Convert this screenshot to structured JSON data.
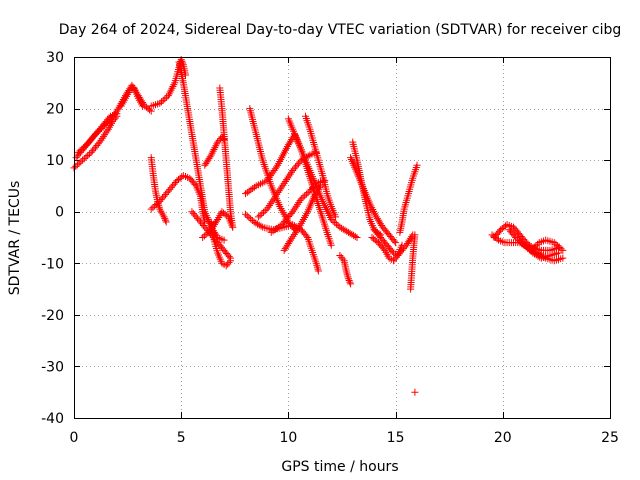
{
  "chart_data": {
    "type": "scatter",
    "title": "Day 264 of 2024, Sidereal Day-to-day VTEC variation (SDTVAR) for receiver cibg",
    "xlabel": "GPS time / hours",
    "ylabel": "SDTVAR / TECUs",
    "xlim": [
      0,
      25
    ],
    "ylim": [
      -40,
      30
    ],
    "xticks": [
      0,
      5,
      10,
      15,
      20,
      25
    ],
    "yticks": [
      -40,
      -30,
      -20,
      -10,
      0,
      10,
      20,
      30
    ],
    "xtick_labels": [
      "0",
      "5",
      "10",
      "15",
      "20",
      "25"
    ],
    "ytick_labels": [
      "-40",
      "-30",
      "-20",
      "-10",
      "0",
      "10",
      "20",
      "30"
    ],
    "grid": true,
    "marker": "+",
    "color": "#ff0000",
    "series": [
      {
        "name": "arc-1",
        "points": [
          [
            0.0,
            8.5
          ],
          [
            0.4,
            10.0
          ],
          [
            0.8,
            11.5
          ],
          [
            1.2,
            13.5
          ],
          [
            1.6,
            16.0
          ],
          [
            1.8,
            17.5
          ],
          [
            2.0,
            18.5
          ]
        ]
      },
      {
        "name": "arc-2",
        "points": [
          [
            0.1,
            10.5
          ],
          [
            0.5,
            12.5
          ],
          [
            0.9,
            14.5
          ],
          [
            1.3,
            16.5
          ],
          [
            1.7,
            18.5
          ],
          [
            2.0,
            19.0
          ]
        ]
      },
      {
        "name": "arc-3",
        "points": [
          [
            0.2,
            11.5
          ],
          [
            0.6,
            13.0
          ],
          [
            1.0,
            15.0
          ],
          [
            1.5,
            17.0
          ],
          [
            2.0,
            19.5
          ],
          [
            2.4,
            22.5
          ],
          [
            2.7,
            24.5
          ],
          [
            3.0,
            22.5
          ],
          [
            3.3,
            20.5
          ],
          [
            3.6,
            19.5
          ]
        ]
      },
      {
        "name": "arc-4",
        "points": [
          [
            2.2,
            20.5
          ],
          [
            2.4,
            22.0
          ],
          [
            2.6,
            23.5
          ],
          [
            2.8,
            24.0
          ],
          [
            3.0,
            22.0
          ],
          [
            3.2,
            20.5
          ]
        ]
      },
      {
        "name": "arc-5",
        "points": [
          [
            3.6,
            20.5
          ],
          [
            4.0,
            21.0
          ],
          [
            4.4,
            22.5
          ],
          [
            4.7,
            25.0
          ],
          [
            4.9,
            28.0
          ],
          [
            5.0,
            29.5
          ],
          [
            5.1,
            28.5
          ],
          [
            5.2,
            26.5
          ]
        ]
      },
      {
        "name": "arc-6",
        "points": [
          [
            4.9,
            29.0
          ],
          [
            5.1,
            25.0
          ],
          [
            5.3,
            20.0
          ],
          [
            5.5,
            15.0
          ],
          [
            5.7,
            10.0
          ],
          [
            5.9,
            5.0
          ],
          [
            6.1,
            0.0
          ],
          [
            6.4,
            -3.0
          ],
          [
            6.7,
            -5.0
          ],
          [
            7.0,
            -5.5
          ]
        ]
      },
      {
        "name": "arc-7",
        "points": [
          [
            3.6,
            10.5
          ],
          [
            3.7,
            7.0
          ],
          [
            3.8,
            4.0
          ],
          [
            3.9,
            2.0
          ],
          [
            4.0,
            0.5
          ],
          [
            4.2,
            -1.0
          ],
          [
            4.3,
            -2.0
          ]
        ]
      },
      {
        "name": "arc-8",
        "points": [
          [
            3.6,
            0.5
          ],
          [
            4.0,
            2.0
          ],
          [
            4.4,
            4.0
          ],
          [
            4.8,
            6.0
          ],
          [
            5.1,
            7.0
          ],
          [
            5.4,
            6.5
          ],
          [
            5.7,
            5.0
          ],
          [
            5.9,
            3.0
          ],
          [
            6.0,
            0.0
          ],
          [
            6.1,
            -2.0
          ]
        ]
      },
      {
        "name": "arc-9",
        "points": [
          [
            5.5,
            0.0
          ],
          [
            5.9,
            -2.0
          ],
          [
            6.3,
            -4.0
          ],
          [
            6.7,
            -6.0
          ],
          [
            7.0,
            -7.5
          ],
          [
            7.3,
            -9.0
          ]
        ]
      },
      {
        "name": "arc-10",
        "points": [
          [
            6.4,
            -2.0
          ],
          [
            6.5,
            -5.0
          ],
          [
            6.7,
            -8.0
          ],
          [
            6.9,
            -10.0
          ],
          [
            7.1,
            -10.5
          ],
          [
            7.3,
            -9.5
          ]
        ]
      },
      {
        "name": "arc-11",
        "points": [
          [
            6.0,
            -5.0
          ],
          [
            6.4,
            -3.5
          ],
          [
            6.7,
            -1.5
          ],
          [
            6.9,
            0.0
          ],
          [
            7.2,
            -1.0
          ],
          [
            7.4,
            -3.0
          ]
        ]
      },
      {
        "name": "arc-12",
        "points": [
          [
            6.1,
            9.0
          ],
          [
            6.4,
            11.0
          ],
          [
            6.7,
            13.5
          ],
          [
            6.9,
            14.5
          ],
          [
            7.0,
            14.0
          ]
        ]
      },
      {
        "name": "arc-13",
        "points": [
          [
            6.8,
            24.0
          ],
          [
            6.9,
            20.0
          ],
          [
            7.0,
            15.0
          ],
          [
            7.1,
            10.0
          ],
          [
            7.2,
            5.0
          ],
          [
            7.3,
            0.0
          ],
          [
            7.4,
            -3.0
          ]
        ]
      },
      {
        "name": "arc-14",
        "points": [
          [
            8.0,
            -0.5
          ],
          [
            8.4,
            -2.0
          ],
          [
            8.8,
            -3.0
          ],
          [
            9.3,
            -3.5
          ],
          [
            9.8,
            -3.0
          ],
          [
            10.2,
            -2.5
          ],
          [
            10.6,
            -3.5
          ],
          [
            10.9,
            -5.0
          ],
          [
            11.1,
            -7.5
          ],
          [
            11.3,
            -10.0
          ],
          [
            11.4,
            -11.5
          ]
        ]
      },
      {
        "name": "arc-15",
        "points": [
          [
            8.2,
            20.0
          ],
          [
            8.5,
            15.0
          ],
          [
            8.8,
            10.0
          ],
          [
            9.2,
            5.0
          ],
          [
            9.6,
            1.0
          ],
          [
            10.0,
            -2.0
          ],
          [
            10.3,
            -3.5
          ]
        ]
      },
      {
        "name": "arc-16",
        "points": [
          [
            8.0,
            3.5
          ],
          [
            8.5,
            5.0
          ],
          [
            9.0,
            6.0
          ],
          [
            9.5,
            9.0
          ],
          [
            10.0,
            13.0
          ],
          [
            10.3,
            15.0
          ],
          [
            10.6,
            12.0
          ],
          [
            10.9,
            8.0
          ],
          [
            11.2,
            4.0
          ],
          [
            11.5,
            0.0
          ],
          [
            11.8,
            -4.0
          ],
          [
            12.0,
            -6.5
          ]
        ]
      },
      {
        "name": "arc-17",
        "points": [
          [
            8.6,
            -1.0
          ],
          [
            9.0,
            0.5
          ],
          [
            9.4,
            3.0
          ],
          [
            9.8,
            5.5
          ],
          [
            10.2,
            8.0
          ],
          [
            10.6,
            10.0
          ],
          [
            11.0,
            11.0
          ],
          [
            11.3,
            11.5
          ]
        ]
      },
      {
        "name": "arc-18",
        "points": [
          [
            9.2,
            -4.0
          ],
          [
            9.7,
            -2.5
          ],
          [
            10.2,
            0.0
          ],
          [
            10.6,
            2.5
          ],
          [
            11.0,
            4.0
          ],
          [
            11.3,
            5.5
          ],
          [
            11.7,
            6.0
          ]
        ]
      },
      {
        "name": "arc-19",
        "points": [
          [
            9.8,
            -7.5
          ],
          [
            10.1,
            -5.5
          ],
          [
            10.5,
            -3.0
          ],
          [
            10.9,
            0.0
          ],
          [
            11.2,
            3.0
          ],
          [
            11.5,
            5.0
          ]
        ]
      },
      {
        "name": "arc-20",
        "points": [
          [
            10.0,
            18.0
          ],
          [
            10.4,
            14.0
          ],
          [
            10.8,
            10.0
          ],
          [
            11.2,
            6.0
          ],
          [
            11.6,
            2.0
          ],
          [
            12.0,
            -1.5
          ],
          [
            12.4,
            -3.0
          ],
          [
            12.8,
            -4.0
          ],
          [
            13.2,
            -5.0
          ]
        ]
      },
      {
        "name": "arc-21",
        "points": [
          [
            10.8,
            18.5
          ],
          [
            11.0,
            16.0
          ],
          [
            11.2,
            13.0
          ],
          [
            11.4,
            10.0
          ],
          [
            11.6,
            7.0
          ],
          [
            11.8,
            3.5
          ],
          [
            12.0,
            1.0
          ],
          [
            12.2,
            -1.0
          ]
        ]
      },
      {
        "name": "arc-22",
        "points": [
          [
            12.4,
            -8.5
          ],
          [
            12.6,
            -9.5
          ],
          [
            12.7,
            -11.5
          ],
          [
            12.8,
            -13.0
          ],
          [
            12.9,
            -14.0
          ]
        ]
      },
      {
        "name": "arc-23",
        "points": [
          [
            12.9,
            10.5
          ],
          [
            13.2,
            7.5
          ],
          [
            13.5,
            4.5
          ],
          [
            13.8,
            1.5
          ],
          [
            14.1,
            -1.0
          ],
          [
            14.4,
            -3.0
          ],
          [
            14.7,
            -4.5
          ],
          [
            15.0,
            -6.0
          ]
        ]
      },
      {
        "name": "arc-24",
        "points": [
          [
            13.0,
            13.5
          ],
          [
            13.2,
            10.0
          ],
          [
            13.4,
            6.0
          ],
          [
            13.6,
            2.0
          ],
          [
            13.8,
            -1.5
          ],
          [
            14.0,
            -3.5
          ],
          [
            14.3,
            -4.5
          ]
        ]
      },
      {
        "name": "arc-25",
        "points": [
          [
            14.0,
            -3.5
          ],
          [
            14.3,
            -5.0
          ],
          [
            14.6,
            -6.5
          ],
          [
            14.9,
            -8.0
          ],
          [
            15.1,
            -8.5
          ],
          [
            15.3,
            -7.5
          ],
          [
            15.5,
            -6.5
          ],
          [
            15.8,
            -4.5
          ]
        ]
      },
      {
        "name": "arc-26",
        "points": [
          [
            13.9,
            -5.0
          ],
          [
            14.2,
            -6.0
          ],
          [
            14.5,
            -7.5
          ],
          [
            14.7,
            -9.0
          ],
          [
            14.9,
            -9.5
          ],
          [
            15.1,
            -8.5
          ],
          [
            15.3,
            -6.5
          ]
        ]
      },
      {
        "name": "arc-27",
        "points": [
          [
            15.2,
            -4.0
          ],
          [
            15.3,
            -2.0
          ],
          [
            15.4,
            0.5
          ],
          [
            15.6,
            3.5
          ],
          [
            15.8,
            6.5
          ],
          [
            16.0,
            9.0
          ]
        ]
      },
      {
        "name": "arc-28",
        "points": [
          [
            15.7,
            -15.0
          ],
          [
            15.75,
            -12.0
          ],
          [
            15.8,
            -9.0
          ],
          [
            15.85,
            -6.5
          ],
          [
            15.9,
            -4.5
          ]
        ]
      },
      {
        "name": "arc-29",
        "points": [
          [
            15.9,
            -35.0
          ]
        ]
      },
      {
        "name": "arc-30",
        "points": [
          [
            19.5,
            -4.5
          ],
          [
            19.8,
            -5.5
          ],
          [
            20.1,
            -6.0
          ],
          [
            20.4,
            -6.0
          ],
          [
            20.8,
            -6.0
          ],
          [
            21.2,
            -7.0
          ],
          [
            21.6,
            -8.0
          ],
          [
            22.0,
            -9.0
          ],
          [
            22.4,
            -9.5
          ],
          [
            22.8,
            -9.0
          ]
        ]
      },
      {
        "name": "arc-31",
        "points": [
          [
            19.6,
            -5.0
          ],
          [
            19.9,
            -3.5
          ],
          [
            20.2,
            -2.5
          ],
          [
            20.5,
            -3.0
          ],
          [
            20.8,
            -4.5
          ],
          [
            21.1,
            -6.0
          ],
          [
            21.4,
            -7.0
          ],
          [
            21.8,
            -7.5
          ],
          [
            22.2,
            -7.5
          ],
          [
            22.6,
            -7.0
          ]
        ]
      },
      {
        "name": "arc-32",
        "points": [
          [
            20.3,
            -3.5
          ],
          [
            20.6,
            -5.0
          ],
          [
            21.0,
            -6.5
          ],
          [
            21.4,
            -8.0
          ],
          [
            21.8,
            -9.0
          ],
          [
            22.2,
            -8.5
          ],
          [
            22.6,
            -8.0
          ]
        ]
      },
      {
        "name": "arc-33",
        "points": [
          [
            21.3,
            -7.5
          ],
          [
            21.7,
            -6.0
          ],
          [
            22.0,
            -5.5
          ],
          [
            22.4,
            -6.0
          ],
          [
            22.8,
            -7.5
          ]
        ]
      }
    ]
  }
}
